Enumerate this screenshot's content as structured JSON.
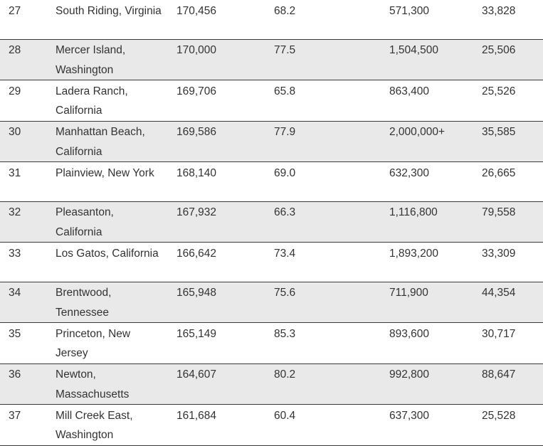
{
  "rows": [
    {
      "rank": "27",
      "place": "South Riding, Virginia",
      "income": "170,456",
      "pct": "68.2",
      "home": "571,300",
      "pop": "33,828"
    },
    {
      "rank": "28",
      "place": "Mercer Island, Washington",
      "income": "170,000",
      "pct": "77.5",
      "home": "1,504,500",
      "pop": "25,506"
    },
    {
      "rank": "29",
      "place": "Ladera Ranch, California",
      "income": "169,706",
      "pct": "65.8",
      "home": "863,400",
      "pop": "25,526"
    },
    {
      "rank": "30",
      "place": "Manhattan Beach, California",
      "income": "169,586",
      "pct": "77.9",
      "home": "2,000,000+",
      "pop": "35,585"
    },
    {
      "rank": "31",
      "place": "Plainview, New York",
      "income": "168,140",
      "pct": "69.0",
      "home": "632,300",
      "pop": "26,665"
    },
    {
      "rank": "32",
      "place": "Pleasanton, California",
      "income": "167,932",
      "pct": "66.3",
      "home": "1,116,800",
      "pop": "79,558"
    },
    {
      "rank": "33",
      "place": "Los Gatos, California",
      "income": "166,642",
      "pct": "73.4",
      "home": "1,893,200",
      "pop": "33,309"
    },
    {
      "rank": "34",
      "place": "Brentwood, Tennessee",
      "income": "165,948",
      "pct": "75.6",
      "home": "711,900",
      "pop": "44,354"
    },
    {
      "rank": "35",
      "place": "Princeton, New Jersey",
      "income": "165,149",
      "pct": "85.3",
      "home": "893,600",
      "pop": "30,717"
    },
    {
      "rank": "36",
      "place": "Newton, Massachusetts",
      "income": "164,607",
      "pct": "80.2",
      "home": "992,800",
      "pop": "88,647"
    },
    {
      "rank": "37",
      "place": "Mill Creek East, Washington",
      "income": "161,684",
      "pct": "60.4",
      "home": "637,300",
      "pop": "25,528"
    }
  ]
}
